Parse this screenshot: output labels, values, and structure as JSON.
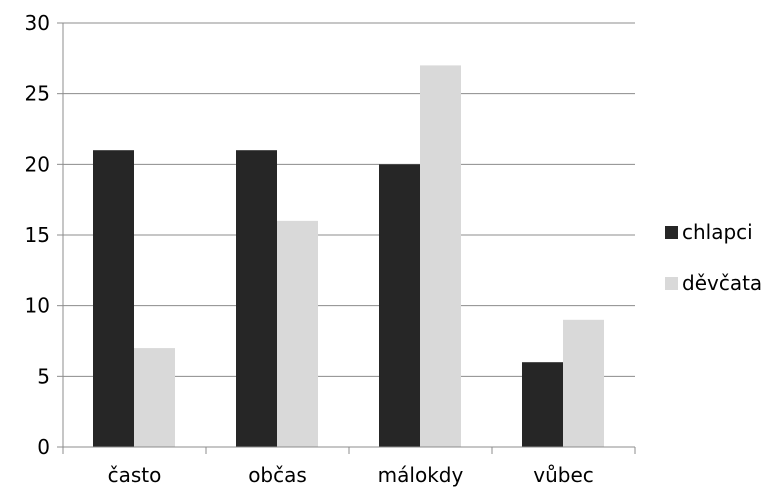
{
  "chart_data": {
    "type": "bar",
    "categories": [
      "často",
      "občas",
      "málokdy",
      "vůbec"
    ],
    "series": [
      {
        "name": "chlapci",
        "values": [
          21,
          21,
          20,
          6
        ],
        "color": "#262626"
      },
      {
        "name": "děvčata",
        "values": [
          7,
          16,
          27,
          9
        ],
        "color": "#d9d9d9"
      }
    ],
    "ylim": [
      0,
      30
    ],
    "yticks": [
      0,
      5,
      10,
      15,
      20,
      25,
      30
    ],
    "grid": true,
    "legend": "right",
    "title": "",
    "xlabel": "",
    "ylabel": ""
  }
}
